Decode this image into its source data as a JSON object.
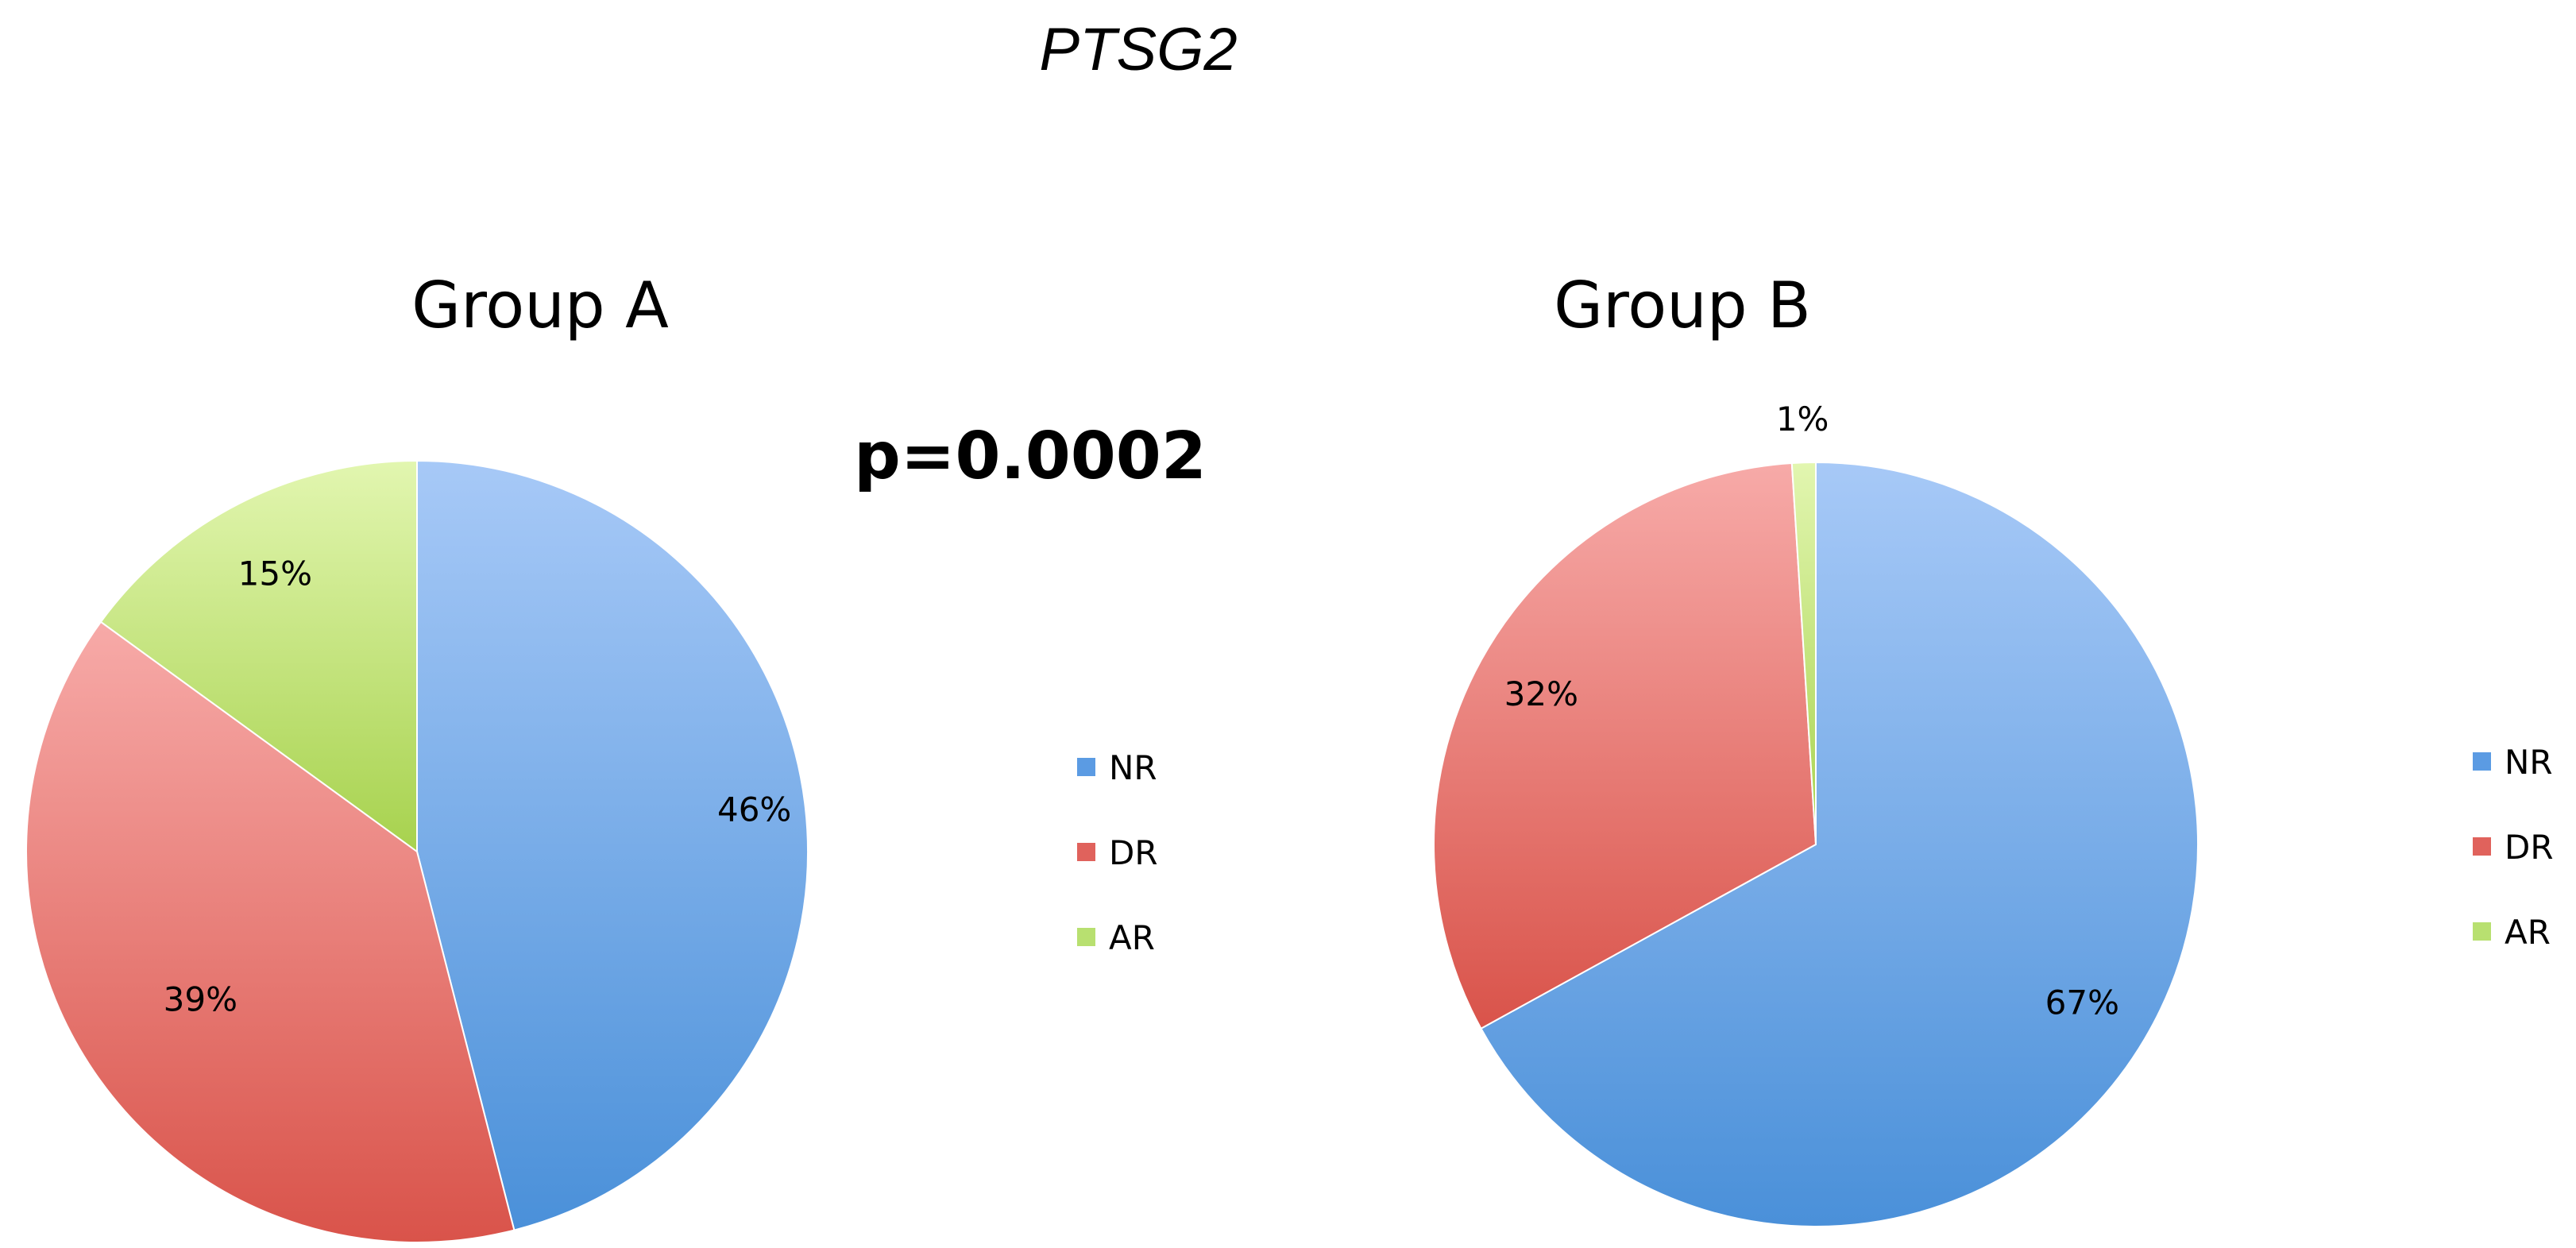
{
  "figure_title": "PTSG2",
  "annotation": "p=0.0002",
  "colors": {
    "NR": {
      "light": "#a7c9f7",
      "dark": "#4a90d9",
      "swatch": "#5b9be3"
    },
    "DR": {
      "light": "#f7aaa8",
      "dark": "#d9534a",
      "swatch": "#e0625c"
    },
    "AR": {
      "light": "#e2f6b0",
      "dark": "#a7d24e",
      "swatch": "#b8e070"
    }
  },
  "chart_data": [
    {
      "type": "pie",
      "title": "Group A",
      "categories": [
        "NR",
        "DR",
        "AR"
      ],
      "values": [
        46,
        39,
        15
      ],
      "labels": [
        "46%",
        "39%",
        "15%"
      ],
      "start_angle": "12 o'clock",
      "direction": "clockwise",
      "legend": {
        "placement": "right",
        "entries": [
          "NR",
          "DR",
          "AR"
        ]
      }
    },
    {
      "type": "pie",
      "title": "Group B",
      "categories": [
        "NR",
        "DR",
        "AR"
      ],
      "values": [
        67,
        32,
        1
      ],
      "labels": [
        "67%",
        "32%",
        "1%"
      ],
      "start_angle": "12 o'clock",
      "direction": "clockwise",
      "legend": {
        "placement": "right",
        "entries": [
          "NR",
          "DR",
          "AR"
        ]
      }
    }
  ]
}
